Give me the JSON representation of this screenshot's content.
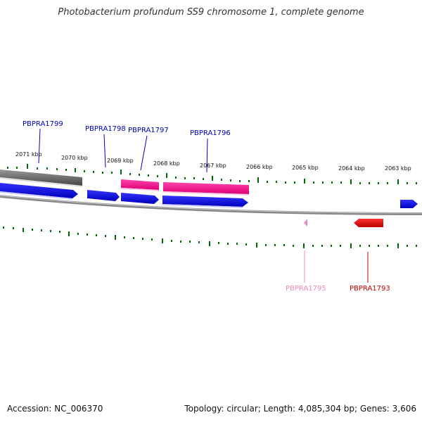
{
  "title": "Photobacterium profundum SS9 chromosome 1, complete genome",
  "footer": {
    "accession": "Accession: NC_006370",
    "stats": "Topology: circular; Length: 4,085,304 bp; Genes: 3,606"
  },
  "colors": {
    "forward_cds": "#0000ee",
    "rna_gene": "#ff2288",
    "gray_feature": "#666666",
    "reverse_red": "#ee0000",
    "reverse_pink": "#ee88bb",
    "tick": "#006600",
    "backbone": "#888888"
  },
  "kbp_labels": [
    "2071 kbp",
    "2070 kbp",
    "2069 kbp",
    "2068 kbp",
    "2067 kbp",
    "2066 kbp",
    "2065 kbp",
    "2064 kbp",
    "2063 kbp"
  ],
  "gene_labels": {
    "g1799": "PBPRA1799",
    "g1798": "PBPRA1798",
    "g1797": "PBPRA1797",
    "g1796": "PBPRA1796",
    "g1795": "PBPRA1795",
    "g1793": "PBPRA1793"
  }
}
